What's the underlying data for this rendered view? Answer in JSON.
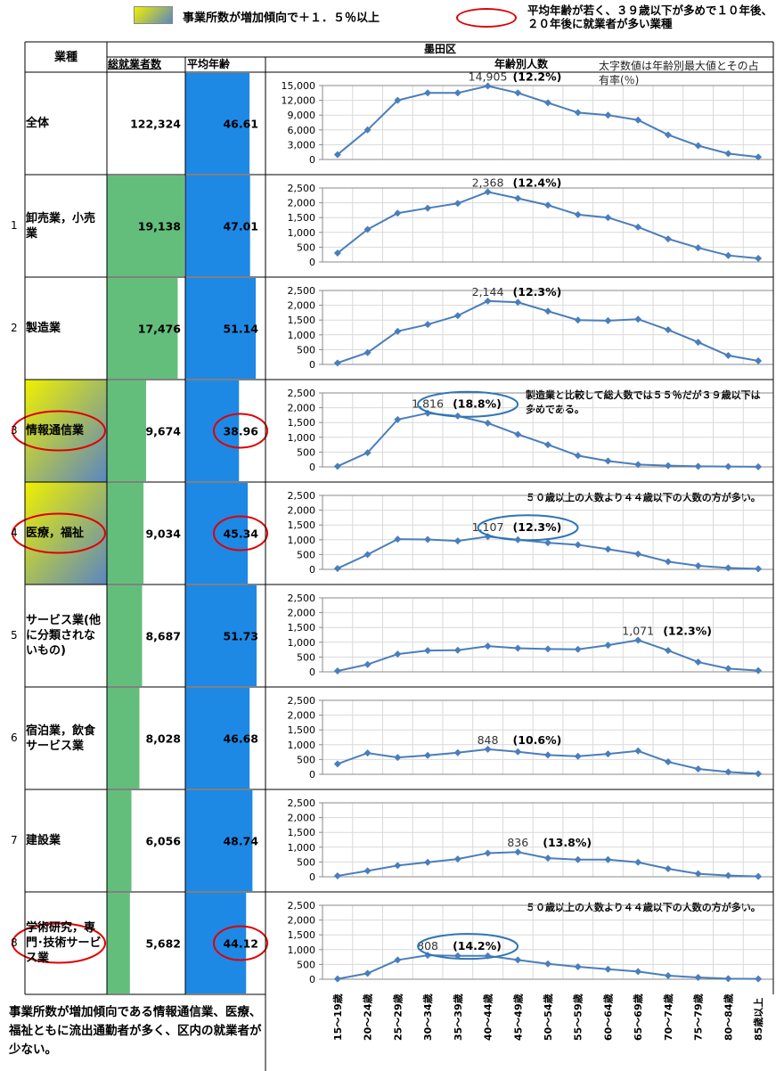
{
  "legend": {
    "growth": "事業所数が増加傾向で＋１．５％以上",
    "young": "平均年齢が若く、３９歳以下が多めで１０年後、２０年後に就業者が多い業種"
  },
  "footnote": "事業所数が増加傾向である情報通信業、医療、福祉ともに流出通勤者が多く、区内の就業者が少ない。",
  "table": {
    "header": {
      "industry": "業種",
      "area": "墨田区",
      "workers": "総就業者数",
      "age": "平均年齢",
      "by_age": "年齢別人数",
      "note": "太字数値は年齢別最大値とその占有率(％)"
    },
    "age_groups": [
      "15～19歳",
      "20～24歳",
      "25～29歳",
      "30～34歳",
      "35～39歳",
      "40～44歳",
      "45～49歳",
      "50～54歳",
      "55～59歳",
      "60～64歳",
      "65～69歳",
      "70～74歳",
      "75～79歳",
      "80～84歳",
      "85歳以上"
    ],
    "rows": [
      {
        "name": "全体",
        "workers": {
          "value": 122324,
          "label": "122,324"
        },
        "age": 46.61,
        "growth": false,
        "highlight": false,
        "ylim": [
          0,
          15000
        ],
        "yticks": [
          0,
          {
            "value": 3000,
            "label": "3,000"
          },
          {
            "value": 6000,
            "label": "6,000"
          },
          {
            "value": 9000,
            "label": "9,000"
          },
          {
            "value": 12000,
            "label": "12,000"
          },
          {
            "value": 15000,
            "label": "15,000"
          }
        ],
        "values": [
          1000,
          6000,
          12000,
          13500,
          13500,
          14905,
          13500,
          11500,
          9500,
          9000,
          8000,
          5000,
          2800,
          1200,
          500
        ],
        "value_labels": [
          null,
          null,
          null,
          null,
          null,
          "14,905",
          null,
          null,
          null,
          null,
          null,
          null,
          null,
          null,
          null
        ],
        "share": "(12.2%)"
      },
      {
        "no": "1",
        "name": "卸売業，小売業",
        "workers": {
          "value": 19138,
          "label": "19,138"
        },
        "age": 47.01,
        "growth": false,
        "highlight": false,
        "ylim": [
          0,
          2500
        ],
        "yticks": [
          0,
          500,
          {
            "value": 1000,
            "label": "1,000"
          },
          {
            "value": 1500,
            "label": "1,500"
          },
          {
            "value": 2000,
            "label": "2,000"
          },
          {
            "value": 2500,
            "label": "2,500"
          }
        ],
        "values": [
          300,
          1100,
          1650,
          1820,
          1980,
          2368,
          2150,
          1920,
          1600,
          1500,
          1180,
          780,
          480,
          220,
          120
        ],
        "value_labels": [
          null,
          null,
          null,
          null,
          null,
          "2,368",
          null,
          null,
          null,
          null,
          null,
          null,
          null,
          null,
          null
        ],
        "share": "(12.4%)"
      },
      {
        "no": "2",
        "name": "製造業",
        "workers": {
          "value": 17476,
          "label": "17,476"
        },
        "age": 51.14,
        "growth": false,
        "highlight": false,
        "ylim": [
          0,
          2500
        ],
        "yticks": [
          0,
          500,
          {
            "value": 1000,
            "label": "1,000"
          },
          {
            "value": 1500,
            "label": "1,500"
          },
          {
            "value": 2000,
            "label": "2,000"
          },
          {
            "value": 2500,
            "label": "2,500"
          }
        ],
        "values": [
          50,
          400,
          1120,
          1350,
          1650,
          2144,
          2100,
          1800,
          1500,
          1480,
          1530,
          1170,
          750,
          300,
          120
        ],
        "value_labels": [
          null,
          null,
          null,
          null,
          null,
          "2,144",
          null,
          null,
          null,
          null,
          null,
          null,
          null,
          null,
          null
        ],
        "share": "(12.3%)"
      },
      {
        "no": "3",
        "name": "情報通信業",
        "workers": {
          "value": 9674,
          "label": "9,674"
        },
        "age": 38.96,
        "growth": true,
        "highlight": true,
        "ylim": [
          0,
          2500
        ],
        "yticks": [
          0,
          500,
          {
            "value": 1000,
            "label": "1,000"
          },
          {
            "value": 1500,
            "label": "1,500"
          },
          {
            "value": 2000,
            "label": "2,000"
          },
          {
            "value": 2500,
            "label": "2,500"
          }
        ],
        "values": [
          20,
          480,
          1600,
          1816,
          1720,
          1480,
          1100,
          750,
          380,
          200,
          80,
          40,
          20,
          10,
          5
        ],
        "value_labels": [
          null,
          null,
          null,
          "1,816",
          null,
          null,
          null,
          null,
          null,
          null,
          null,
          null,
          null,
          null,
          null
        ],
        "share": "(18.8%)",
        "note": "製造業と比較して総人数では５５％だが３９歳以下は多めである。"
      },
      {
        "no": "4",
        "name": "医療，福祉",
        "workers": {
          "value": 9034,
          "label": "9,034"
        },
        "age": 45.34,
        "growth": true,
        "highlight": true,
        "ylim": [
          0,
          2500
        ],
        "yticks": [
          0,
          500,
          {
            "value": 1000,
            "label": "1,000"
          },
          {
            "value": 1500,
            "label": "1,500"
          },
          {
            "value": 2000,
            "label": "2,000"
          },
          {
            "value": 2500,
            "label": "2,500"
          }
        ],
        "values": [
          30,
          500,
          1020,
          1010,
          960,
          1107,
          1000,
          900,
          830,
          680,
          520,
          260,
          120,
          50,
          20
        ],
        "value_labels": [
          null,
          null,
          null,
          null,
          null,
          "1,107",
          null,
          null,
          null,
          null,
          null,
          null,
          null,
          null,
          null
        ],
        "share": "(12.3%)",
        "note": "５０歳以上の人数より４４歳以下の人数の方が多い。"
      },
      {
        "no": "5",
        "name": "サービス業(他に分類されないもの)",
        "workers": {
          "value": 8687,
          "label": "8,687"
        },
        "age": 51.73,
        "growth": false,
        "highlight": false,
        "ylim": [
          0,
          2500
        ],
        "yticks": [
          0,
          500,
          {
            "value": 1000,
            "label": "1,000"
          },
          {
            "value": 1500,
            "label": "1,500"
          },
          {
            "value": 2000,
            "label": "2,000"
          },
          {
            "value": 2500,
            "label": "2,500"
          }
        ],
        "values": [
          30,
          250,
          600,
          720,
          730,
          870,
          800,
          770,
          760,
          900,
          1071,
          720,
          330,
          110,
          40
        ],
        "value_labels": [
          null,
          null,
          null,
          null,
          null,
          null,
          null,
          null,
          null,
          null,
          "1,071",
          null,
          null,
          null,
          null
        ],
        "share": "(12.3%)"
      },
      {
        "no": "6",
        "name": "宿泊業，飲食サービス業",
        "workers": {
          "value": 8028,
          "label": "8,028"
        },
        "age": 46.68,
        "growth": false,
        "highlight": false,
        "ylim": [
          0,
          2500
        ],
        "yticks": [
          0,
          500,
          {
            "value": 1000,
            "label": "1,000"
          },
          {
            "value": 1500,
            "label": "1,500"
          },
          {
            "value": 2000,
            "label": "2,000"
          },
          {
            "value": 2500,
            "label": "2,500"
          }
        ],
        "values": [
          350,
          720,
          570,
          640,
          730,
          848,
          760,
          650,
          610,
          690,
          790,
          420,
          180,
          80,
          20
        ],
        "value_labels": [
          null,
          null,
          null,
          null,
          null,
          "848",
          null,
          null,
          null,
          null,
          null,
          null,
          null,
          null,
          null
        ],
        "share": "(10.6%)"
      },
      {
        "no": "7",
        "name": "建設業",
        "workers": {
          "value": 6056,
          "label": "6,056"
        },
        "age": 48.74,
        "growth": false,
        "highlight": false,
        "ylim": [
          0,
          2500
        ],
        "yticks": [
          0,
          500,
          {
            "value": 1000,
            "label": "1,000"
          },
          {
            "value": 1500,
            "label": "1,500"
          },
          {
            "value": 2000,
            "label": "2,000"
          },
          {
            "value": 2500,
            "label": "2,500"
          }
        ],
        "values": [
          30,
          200,
          380,
          490,
          600,
          800,
          836,
          630,
          580,
          580,
          490,
          270,
          100,
          40,
          10
        ],
        "value_labels": [
          null,
          null,
          null,
          null,
          null,
          null,
          "836",
          null,
          null,
          null,
          null,
          null,
          null,
          null,
          null
        ],
        "share": "(13.8%)"
      },
      {
        "no": "8",
        "name": "学術研究，専門･技術サービス業",
        "workers": {
          "value": 5682,
          "label": "5,682"
        },
        "age": 44.12,
        "growth": false,
        "highlight": true,
        "ylim": [
          0,
          2500
        ],
        "yticks": [
          0,
          500,
          {
            "value": 1000,
            "label": "1,000"
          },
          {
            "value": 1500,
            "label": "1,500"
          },
          {
            "value": 2000,
            "label": "2,000"
          },
          {
            "value": 2500,
            "label": "2,500"
          }
        ],
        "values": [
          10,
          200,
          650,
          808,
          790,
          790,
          650,
          520,
          420,
          340,
          260,
          120,
          60,
          20,
          10
        ],
        "value_labels": [
          null,
          null,
          null,
          "808",
          null,
          null,
          null,
          null,
          null,
          null,
          null,
          null,
          null,
          null,
          null
        ],
        "share": "(14.2%)",
        "note": "５０歳以上の人数より４４歳以下の人数の方が多い。"
      }
    ]
  }
}
